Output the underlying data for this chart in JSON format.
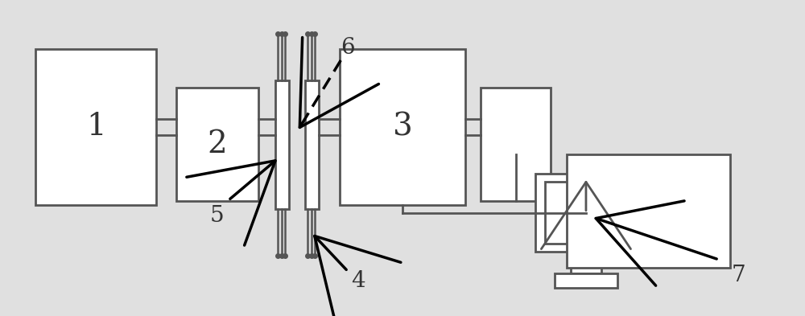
{
  "bg_color": "#e0e0e0",
  "line_color": "#555555",
  "text_color": "#333333",
  "fig_width": 10.0,
  "fig_height": 3.93,
  "dpi": 100
}
